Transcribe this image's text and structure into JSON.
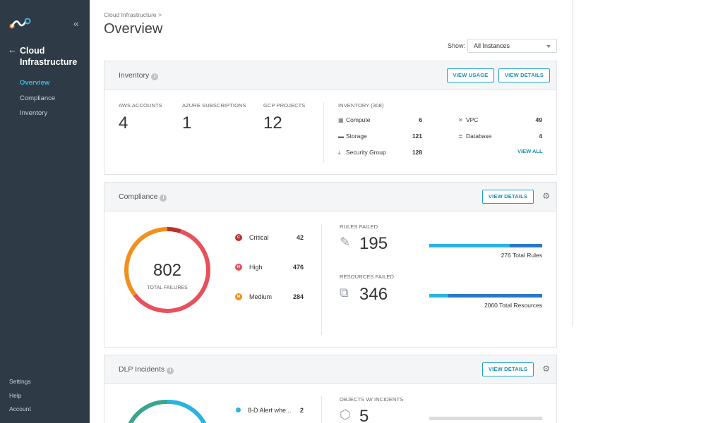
{
  "sidebar": {
    "section_title": "Cloud Infrastructure",
    "items": [
      {
        "label": "Overview",
        "active": true
      },
      {
        "label": "Compliance",
        "active": false
      },
      {
        "label": "Inventory",
        "active": false
      }
    ],
    "bottom_items": [
      "Settings",
      "Help",
      "Account"
    ]
  },
  "header": {
    "breadcrumb": "Cloud Infrastructure >",
    "title": "Overview",
    "show_label": "Show:",
    "show_value": "All Instances"
  },
  "inventory": {
    "title": "Inventory",
    "view_usage_label": "VIEW USAGE",
    "view_details_label": "VIEW DETAILS",
    "aws_label": "AWS ACCOUNTS",
    "aws_value": "4",
    "azure_label": "AZURE SUBSCRIPTIONS",
    "azure_value": "1",
    "gcp_label": "GCP PROJECTS",
    "gcp_value": "12",
    "inventory_label": "INVENTORY (308)",
    "rows": [
      {
        "label": "Compute",
        "value": "6",
        "icon": "compute-icon"
      },
      {
        "label": "Storage",
        "value": "121",
        "icon": "storage-icon"
      },
      {
        "label": "Security Group",
        "value": "128",
        "icon": "security-group-icon"
      },
      {
        "label": "VPC",
        "value": "49",
        "icon": "vpc-icon"
      },
      {
        "label": "Database",
        "value": "4",
        "icon": "database-icon"
      }
    ],
    "view_all_label": "VIEW ALL"
  },
  "compliance": {
    "title": "Compliance",
    "view_details_label": "VIEW DETAILS",
    "total_failures": "802",
    "total_failures_label": "TOTAL FAILURES",
    "legend": [
      {
        "letter": "C",
        "label": "Critical",
        "value": "42",
        "color": "#b8322e"
      },
      {
        "letter": "H",
        "label": "High",
        "value": "476",
        "color": "#e8505b"
      },
      {
        "letter": "M",
        "label": "Medium",
        "value": "284",
        "color": "#f2901f"
      }
    ],
    "rules_failed_label": "RULES FAILED",
    "rules_failed_value": "195",
    "rules_total_text": "276 Total Rules",
    "rules_failed_fraction": 0.71,
    "resources_failed_label": "RESOURCES FAILED",
    "resources_failed_value": "346",
    "resources_total_text": "2060 Total Resources",
    "resources_failed_fraction": 0.17
  },
  "dlp": {
    "title": "DLP Incidents",
    "view_details_label": "VIEW DETAILS",
    "legend": [
      {
        "label": "8-D Alert whe...",
        "value": "2",
        "color": "#2bb3e0"
      }
    ],
    "objects_label": "OBJECTS W/ INCIDENTS",
    "objects_value": "5"
  },
  "colors": {
    "accent": "#1a8fb3",
    "sidebar_bg": "#2e3b46",
    "bar_blue": "#2979c8",
    "bar_cyan": "#2bb3e0"
  }
}
